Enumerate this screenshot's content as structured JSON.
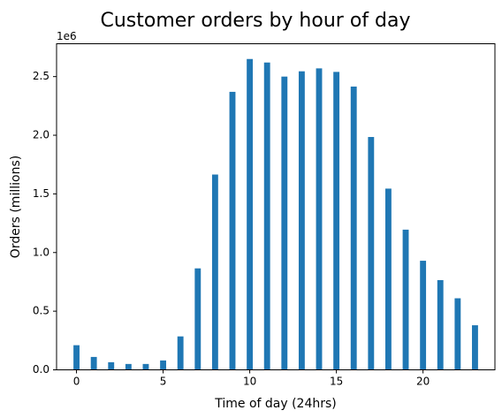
{
  "chart_data": {
    "type": "bar",
    "title": "Customer orders by hour of day",
    "xlabel": "Time of day (24hrs)",
    "ylabel": "Orders (millions)",
    "y_offset_text": "1e6",
    "x_ticks": [
      0,
      5,
      10,
      15,
      20
    ],
    "y_ticks": [
      0.0,
      0.5,
      1.0,
      1.5,
      2.0,
      2.5
    ],
    "y_tick_labels": [
      "0.0",
      "0.5",
      "1.0",
      "1.5",
      "2.0",
      "2.5"
    ],
    "x": [
      0,
      1,
      2,
      3,
      4,
      5,
      6,
      7,
      8,
      9,
      10,
      11,
      12,
      13,
      14,
      15,
      16,
      17,
      18,
      19,
      20,
      21,
      22,
      23
    ],
    "values": [
      0.21,
      0.11,
      0.065,
      0.05,
      0.05,
      0.08,
      0.285,
      0.865,
      1.665,
      2.37,
      2.65,
      2.62,
      2.5,
      2.545,
      2.57,
      2.54,
      2.415,
      1.985,
      1.545,
      1.195,
      0.93,
      0.765,
      0.61,
      0.38
    ],
    "xlim": [
      -1.15,
      24.15
    ],
    "ylim": [
      0,
      2.78
    ],
    "bar_width": 0.35,
    "colors": {
      "bar": "#1f77b4",
      "axis": "#000000",
      "background": "#ffffff"
    },
    "grid": false
  }
}
